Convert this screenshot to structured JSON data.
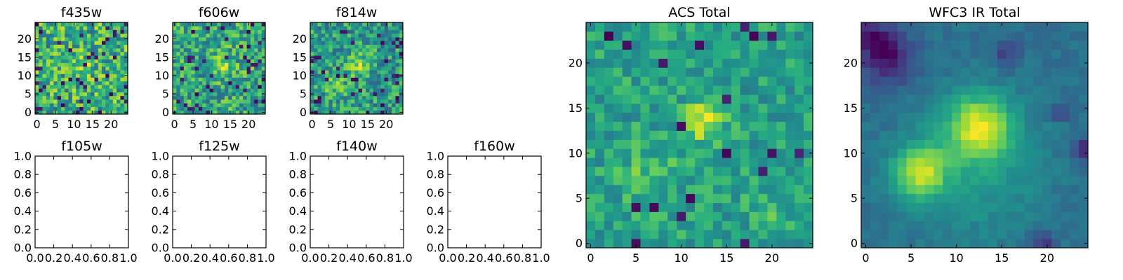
{
  "figure": {
    "type": "image-grid",
    "description_free": true
  },
  "chart_data": [
    {
      "id": "f435w",
      "type": "heatmap",
      "title": "f435w",
      "colormap": "viridis",
      "grid_size": 25,
      "xlim": [
        -0.5,
        24.5
      ],
      "ylim": [
        -0.5,
        24.5
      ],
      "xticks": [
        0,
        5,
        10,
        15,
        20
      ],
      "yticks": [
        0,
        5,
        10,
        15,
        20
      ],
      "xtick_labels": [
        "0",
        "5",
        "10",
        "15",
        "20"
      ],
      "ytick_labels": [
        "0",
        "5",
        "10",
        "15",
        "20"
      ],
      "model": {
        "base": 0.62,
        "noise": 0.55,
        "dark_prob": 0.07,
        "seed": 11,
        "blobs": [
          {
            "x": 12.5,
            "y": 13,
            "sigma": 2.2,
            "amp": 0.12
          }
        ]
      }
    },
    {
      "id": "f606w",
      "type": "heatmap",
      "title": "f606w",
      "colormap": "viridis",
      "grid_size": 25,
      "xlim": [
        -0.5,
        24.5
      ],
      "ylim": [
        -0.5,
        24.5
      ],
      "xticks": [
        0,
        5,
        10,
        15,
        20
      ],
      "yticks": [
        0,
        5,
        10,
        15,
        20
      ],
      "xtick_labels": [
        "0",
        "5",
        "10",
        "15",
        "20"
      ],
      "ytick_labels": [
        "0",
        "5",
        "10",
        "15",
        "20"
      ],
      "model": {
        "base": 0.6,
        "noise": 0.5,
        "dark_prob": 0.06,
        "seed": 23,
        "blobs": [
          {
            "x": 12.5,
            "y": 13,
            "sigma": 2.0,
            "amp": 0.25
          }
        ]
      }
    },
    {
      "id": "f814w",
      "type": "heatmap",
      "title": "f814w",
      "colormap": "viridis",
      "grid_size": 25,
      "xlim": [
        -0.5,
        24.5
      ],
      "ylim": [
        -0.5,
        24.5
      ],
      "xticks": [
        0,
        5,
        10,
        15,
        20
      ],
      "yticks": [
        0,
        5,
        10,
        15,
        20
      ],
      "xtick_labels": [
        "0",
        "5",
        "10",
        "15",
        "20"
      ],
      "ytick_labels": [
        "0",
        "5",
        "10",
        "15",
        "20"
      ],
      "model": {
        "base": 0.58,
        "noise": 0.5,
        "dark_prob": 0.06,
        "seed": 37,
        "blobs": [
          {
            "x": 12.5,
            "y": 13,
            "sigma": 2.0,
            "amp": 0.3
          },
          {
            "x": 6,
            "y": 8,
            "sigma": 2.2,
            "amp": 0.2
          }
        ]
      }
    },
    {
      "id": "f105w",
      "type": "empty",
      "title": "f105w",
      "xlim": [
        0,
        1
      ],
      "ylim": [
        0,
        1
      ],
      "xtick_labels": [
        "0.0",
        "0.2",
        "0.4",
        "0.6",
        "0.8",
        "1.0"
      ],
      "ytick_labels": [
        "0.0",
        "0.2",
        "0.4",
        "0.6",
        "0.8",
        "1.0"
      ]
    },
    {
      "id": "f125w",
      "type": "empty",
      "title": "f125w",
      "xlim": [
        0,
        1
      ],
      "ylim": [
        0,
        1
      ],
      "xtick_labels": [
        "0.0",
        "0.2",
        "0.4",
        "0.6",
        "0.8",
        "1.0"
      ],
      "ytick_labels": [
        "0.0",
        "0.2",
        "0.4",
        "0.6",
        "0.8",
        "1.0"
      ]
    },
    {
      "id": "f140w",
      "type": "empty",
      "title": "f140w",
      "xlim": [
        0,
        1
      ],
      "ylim": [
        0,
        1
      ],
      "xtick_labels": [
        "0.0",
        "0.2",
        "0.4",
        "0.6",
        "0.8",
        "1.0"
      ],
      "ytick_labels": [
        "0.0",
        "0.2",
        "0.4",
        "0.6",
        "0.8",
        "1.0"
      ]
    },
    {
      "id": "f160w",
      "type": "empty",
      "title": "f160w",
      "xlim": [
        0,
        1
      ],
      "ylim": [
        0,
        1
      ],
      "xtick_labels": [
        "0.0",
        "0.2",
        "0.4",
        "0.6",
        "0.8",
        "1.0"
      ],
      "ytick_labels": [
        "0.0",
        "0.2",
        "0.4",
        "0.6",
        "0.8",
        "1.0"
      ]
    },
    {
      "id": "acs-total",
      "type": "heatmap",
      "title": "ACS Total",
      "colormap": "viridis",
      "grid_size": 25,
      "xlim": [
        -0.5,
        24.5
      ],
      "ylim": [
        -0.5,
        24.5
      ],
      "xticks": [
        0,
        5,
        10,
        15,
        20
      ],
      "yticks": [
        0,
        5,
        10,
        15,
        20
      ],
      "xtick_labels": [
        "0",
        "5",
        "10",
        "15",
        "20"
      ],
      "ytick_labels": [
        "0",
        "5",
        "10",
        "15",
        "20"
      ],
      "model": {
        "base": 0.6,
        "noise": 0.32,
        "dark_prob": 0.035,
        "seed": 53,
        "blobs": [
          {
            "x": 12.5,
            "y": 13.5,
            "sigma": 1.6,
            "amp": 0.35
          },
          {
            "x": 6.5,
            "y": 7.5,
            "sigma": 2.2,
            "amp": 0.15
          },
          {
            "x": 20,
            "y": 4,
            "sigma": 2.0,
            "amp": 0.1
          }
        ]
      }
    },
    {
      "id": "wfc3-ir-total",
      "type": "heatmap",
      "title": "WFC3 IR Total",
      "colormap": "viridis",
      "grid_size": 25,
      "xlim": [
        -0.5,
        24.5
      ],
      "ylim": [
        -0.5,
        24.5
      ],
      "xticks": [
        0,
        5,
        10,
        15,
        20
      ],
      "yticks": [
        0,
        5,
        10,
        15,
        20
      ],
      "xtick_labels": [
        "0",
        "5",
        "10",
        "15",
        "20"
      ],
      "ytick_labels": [
        "0",
        "5",
        "10",
        "15",
        "20"
      ],
      "model": {
        "base": 0.38,
        "noise": 0.1,
        "dark_prob": 0.0,
        "seed": 71,
        "blobs": [
          {
            "x": 12.5,
            "y": 13,
            "sigma": 2.5,
            "amp": 0.55
          },
          {
            "x": 6,
            "y": 8,
            "sigma": 2.0,
            "amp": 0.55
          },
          {
            "x": 12,
            "y": 8,
            "sigma": 5.5,
            "amp": 0.18
          }
        ],
        "dark_regions": [
          {
            "x": 2.5,
            "y": 20.5,
            "sigma": 2.0,
            "amp": 0.35
          },
          {
            "x": 0.5,
            "y": 23,
            "sigma": 1.5,
            "amp": 0.25
          },
          {
            "x": 15.5,
            "y": 21,
            "sigma": 1.0,
            "amp": 0.2
          },
          {
            "x": 24,
            "y": 10.5,
            "sigma": 0.9,
            "amp": 0.3
          },
          {
            "x": 21.5,
            "y": 14.5,
            "sigma": 0.7,
            "amp": 0.22
          },
          {
            "x": 19.5,
            "y": -0.3,
            "sigma": 1.0,
            "amp": 0.25
          }
        ]
      }
    }
  ]
}
